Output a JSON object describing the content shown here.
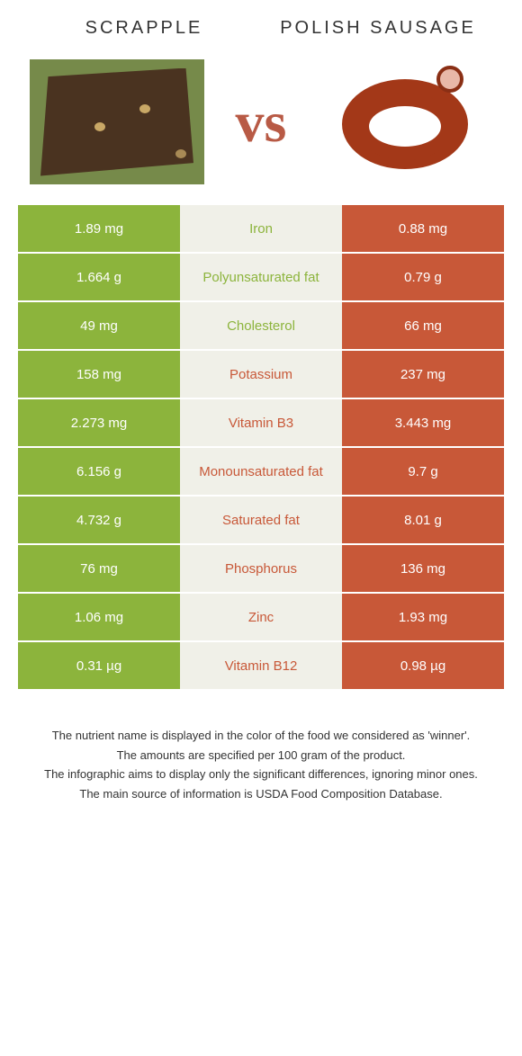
{
  "header": {
    "left_title": "Scrapple",
    "right_title": "Polish sausage",
    "vs": "vs"
  },
  "colors": {
    "green": "#8cb43c",
    "red": "#c85838",
    "mid_bg": "#f0f0e8"
  },
  "rows": [
    {
      "left": "1.89 mg",
      "label": "Iron",
      "right": "0.88 mg",
      "winner": "left"
    },
    {
      "left": "1.664 g",
      "label": "Polyunsaturated fat",
      "right": "0.79 g",
      "winner": "left"
    },
    {
      "left": "49 mg",
      "label": "Cholesterol",
      "right": "66 mg",
      "winner": "left"
    },
    {
      "left": "158 mg",
      "label": "Potassium",
      "right": "237 mg",
      "winner": "right"
    },
    {
      "left": "2.273 mg",
      "label": "Vitamin B3",
      "right": "3.443 mg",
      "winner": "right"
    },
    {
      "left": "6.156 g",
      "label": "Monounsaturated fat",
      "right": "9.7 g",
      "winner": "right"
    },
    {
      "left": "4.732 g",
      "label": "Saturated fat",
      "right": "8.01 g",
      "winner": "right"
    },
    {
      "left": "76 mg",
      "label": "Phosphorus",
      "right": "136 mg",
      "winner": "right"
    },
    {
      "left": "1.06 mg",
      "label": "Zinc",
      "right": "1.93 mg",
      "winner": "right"
    },
    {
      "left": "0.31 µg",
      "label": "Vitamin B12",
      "right": "0.98 µg",
      "winner": "right"
    }
  ],
  "footnotes": [
    "The nutrient name is displayed in the color of the food we considered as 'winner'.",
    "The amounts are specified per 100 gram of the product.",
    "The infographic aims to display only the significant differences, ignoring minor ones.",
    "The main source of information is USDA Food Composition Database."
  ]
}
